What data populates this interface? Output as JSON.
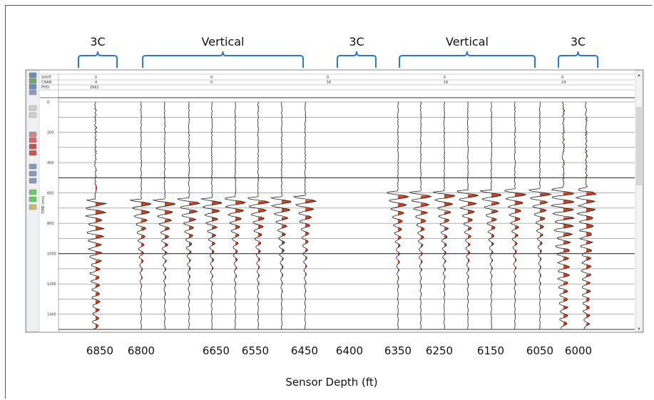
{
  "chart_data": {
    "type": "seismic-traces",
    "xlabel": "Sensor Depth (ft)",
    "ylabel": "TIME (ms)",
    "ylim": [
      0,
      1500
    ],
    "y_ticks": [
      "0",
      "200",
      "400",
      "600",
      "800",
      "1000",
      "1200",
      "1400"
    ],
    "header_rows": [
      "SHOT",
      "CHAN",
      "FFID"
    ],
    "header_values": {
      "shot": [
        "0",
        "0",
        "0",
        "0",
        "0"
      ],
      "chan": [
        "4",
        "0",
        "16",
        "16",
        "24"
      ],
      "ffid": [
        "2662"
      ]
    },
    "groups": [
      {
        "label": "3C",
        "kind": "3C",
        "depths": [
          "6850"
        ]
      },
      {
        "label": "Vertical",
        "kind": "vertical",
        "depths": [
          "6800",
          "6650",
          "6550",
          "6450"
        ]
      },
      {
        "label": "3C",
        "kind": "3C",
        "depths": [
          "6400"
        ]
      },
      {
        "label": "Vertical",
        "kind": "vertical",
        "depths": [
          "6350",
          "6250",
          "6150",
          "6050"
        ]
      },
      {
        "label": "3C",
        "kind": "3C",
        "depths": [
          "6000"
        ]
      }
    ],
    "depth_labels": [
      "6850",
      "6800",
      "6650",
      "6550",
      "6450",
      "6400",
      "6350",
      "6250",
      "6150",
      "6050",
      "6000"
    ],
    "first_break_ms": {
      "6850": 660,
      "6800": 660,
      "6650": 650,
      "6550": 645,
      "6450": 640,
      "6350": 610,
      "6250": 605,
      "6150": 600,
      "6050": 595,
      "6000": 590
    },
    "colors": {
      "positive_fill": "#d1401f",
      "trace": "#222222",
      "bracket": "#2b78d4",
      "grid": "#444444"
    }
  }
}
